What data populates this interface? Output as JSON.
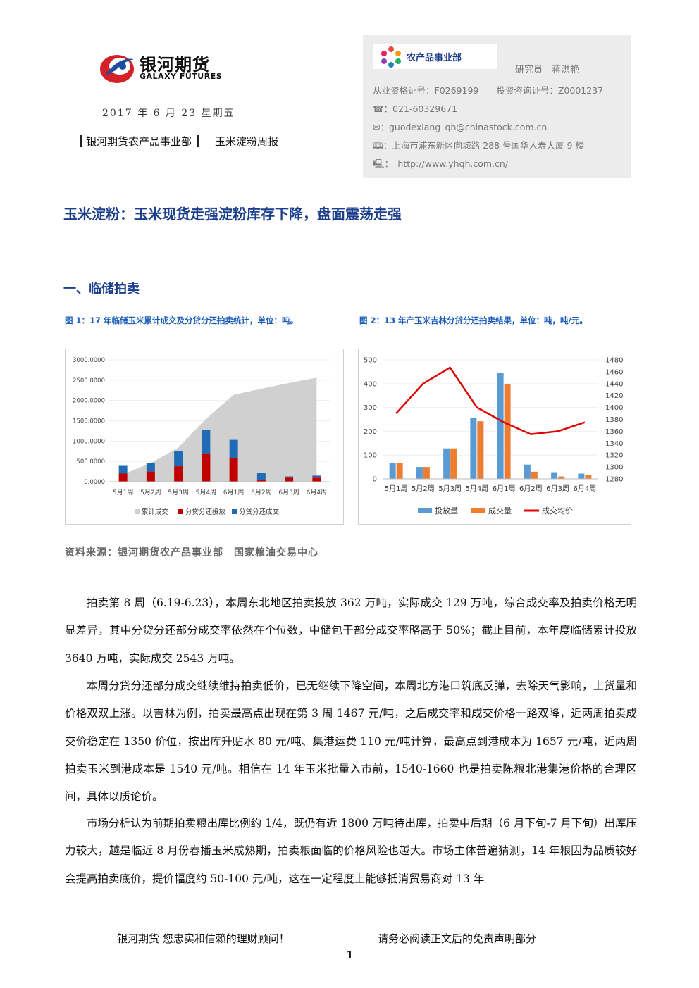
{
  "header": {
    "logo_cn": "银河期货",
    "logo_en": "GALAXY FUTURES",
    "date": "2017 年 6 月 23 星期五",
    "department": "银河期货农产品事业部",
    "report_name": "玉米淀粉周报"
  },
  "analyst_box": {
    "badge": "农产品事业部",
    "analyst": "研究员　蒋洪艳",
    "qualification": "从业资格证号：F0269199　　投资咨询证号：Z0001237",
    "phone": "☎：021-60329671",
    "email": "✉：guodexiang_qh@chinastock.com.cn",
    "address": "🕮：上海市浦东新区向城路 288 号国华人寿大厦 9 楼",
    "website": "🖳：　http://www.yhqh.com.cn/"
  },
  "main_title": "玉米淀粉：玉米现货走强淀粉库存下降，盘面震荡走强",
  "section_title": "一、临储拍卖",
  "fig1": {
    "caption": "图 1：17 年临储玉米累计成交及分贷分还拍卖统计，单位：吨。",
    "legend": [
      "累计成交",
      "分贷分还投放",
      "分贷分还成交"
    ]
  },
  "fig2": {
    "caption": "图 2：13 年产玉米吉林分贷分还拍卖结果，单位：吨，吨/元。",
    "legend": [
      "投放量",
      "成交量",
      "成交均价"
    ]
  },
  "chart_data": [
    {
      "type": "bar",
      "categories": [
        "5月1周",
        "5月2周",
        "5月3周",
        "5月4周",
        "6月1周",
        "6月2周",
        "6月3周",
        "6月4周"
      ],
      "ylim": [
        0,
        3000
      ],
      "yticks": [
        "0.0000",
        "500.0000",
        "1000.0000",
        "1500.0000",
        "2000.0000",
        "2500.0000",
        "3000.0000"
      ],
      "series": [
        {
          "name": "累计成交",
          "kind": "area",
          "values": [
            180,
            460,
            840,
            1550,
            2140,
            2290,
            2430,
            2560
          ]
        },
        {
          "name": "分贷分还投放",
          "kind": "stacked-bar",
          "values": [
            200,
            250,
            380,
            700,
            580,
            50,
            100,
            100
          ]
        },
        {
          "name": "分贷分还成交",
          "kind": "stacked-bar",
          "values": [
            190,
            210,
            380,
            570,
            450,
            170,
            30,
            50
          ]
        }
      ]
    },
    {
      "type": "bar",
      "categories": [
        "5月1周",
        "5月2周",
        "5月3周",
        "5月4周",
        "6月1周",
        "6月2周",
        "6月3周",
        "6月4周"
      ],
      "ylim": [
        0,
        500
      ],
      "yticks": [
        "0",
        "100",
        "200",
        "300",
        "400",
        "500"
      ],
      "y2lim": [
        1280,
        1480
      ],
      "y2ticks": [
        "1280",
        "1300",
        "1320",
        "1340",
        "1360",
        "1380",
        "1400",
        "1420",
        "1440",
        "1460",
        "1480"
      ],
      "series": [
        {
          "name": "投放量",
          "kind": "bar",
          "values": [
            68,
            50,
            128,
            255,
            445,
            60,
            28,
            22
          ]
        },
        {
          "name": "成交量",
          "kind": "bar",
          "values": [
            68,
            50,
            128,
            242,
            398,
            30,
            10,
            15
          ]
        },
        {
          "name": "成交均价",
          "kind": "line",
          "axis": "right",
          "values": [
            1390,
            1440,
            1467,
            1400,
            1375,
            1355,
            1360,
            1375
          ]
        }
      ]
    }
  ],
  "source": "资料来源：银河期货农产品事业部　国家粮油交易中心",
  "paragraphs": [
    "拍卖第 8 周（6.19-6.23），本周东北地区拍卖投放 362 万吨，实际成交 129 万吨，综合成交率及拍卖价格无明显差异，其中分贷分还部分成交率依然在个位数，中储包干部分成交率略高于 50%；截止目前，本年度临储累计投放 3640 万吨，实际成交 2543 万吨。",
    "本周分贷分还部分成交继续维持拍卖低价，已无继续下降空间，本周北方港口筑底反弹，去除天气影响，上货量和价格双双上涨。以吉林为例，拍卖最高点出现在第 3 周 1467 元/吨，之后成交率和成交价格一路双降，近两周拍卖成交价稳定在 1350 价位，按出库升贴水 80 元/吨、集港运费 110 元/吨计算，最高点到港成本为 1657 元/吨，近两周拍卖玉米到港成本是 1540 元/吨。相信在 14 年玉米批量入市前，1540-1660 也是拍卖陈粮北港集港价格的合理区间，具体以质论价。",
    "市场分析认为前期拍卖粮出库比例约 1/4，既仍有近 1800 万吨待出库，拍卖中后期（6 月下旬-7 月下旬）出库压力较大，越是临近 8 月份春播玉米成熟期，拍卖粮面临的价格风险也越大。市场主体普遍猜测，14 年粮因为品质较好会提高拍卖底价，提价幅度约 50-100 元/吨，这在一定程度上能够抵消贸易商对 13 年"
  ],
  "footer": {
    "slogan": "银河期货  您忠实和信赖的理财顾问！",
    "disclaimer": "请务必阅读正文后的免责声明部分",
    "page": "1"
  },
  "colors": {
    "title_blue": "#1b3f8c",
    "caption_blue": "#1b5db8",
    "logo_red": "#d42027",
    "logo_blue": "#1b4ea0",
    "area_gray": "#d0d0d0",
    "bar_red": "#c00000",
    "bar_blue": "#1f6bb5",
    "bar2_blue": "#5b9bd5",
    "bar2_orange": "#ed7d31",
    "line_red": "#e00000"
  }
}
